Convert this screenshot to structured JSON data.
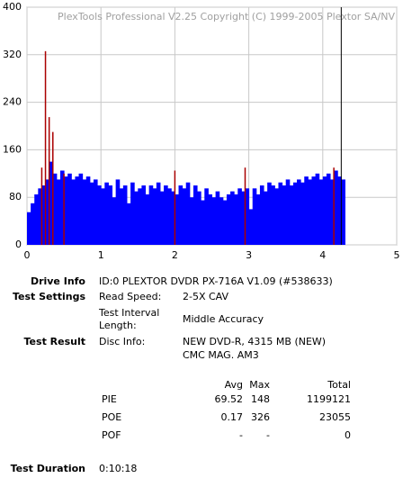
{
  "chart_data": {
    "type": "bar",
    "watermark": "PlexTools Professional V2.25 Copyright (C) 1999-2005 Plextor SA/NV",
    "x": [
      0,
      0.05,
      0.1,
      0.15,
      0.2,
      0.25,
      0.3,
      0.35,
      0.4,
      0.45,
      0.5,
      0.55,
      0.6,
      0.65,
      0.7,
      0.75,
      0.8,
      0.85,
      0.9,
      0.95,
      1,
      1.05,
      1.1,
      1.15,
      1.2,
      1.25,
      1.3,
      1.35,
      1.4,
      1.45,
      1.5,
      1.55,
      1.6,
      1.65,
      1.7,
      1.75,
      1.8,
      1.85,
      1.9,
      1.95,
      2,
      2.05,
      2.1,
      2.15,
      2.2,
      2.25,
      2.3,
      2.35,
      2.4,
      2.45,
      2.5,
      2.55,
      2.6,
      2.65,
      2.7,
      2.75,
      2.8,
      2.85,
      2.9,
      2.95,
      3,
      3.05,
      3.1,
      3.15,
      3.2,
      3.25,
      3.3,
      3.35,
      3.4,
      3.45,
      3.5,
      3.55,
      3.6,
      3.65,
      3.7,
      3.75,
      3.8,
      3.85,
      3.9,
      3.95,
      4,
      4.05,
      4.1,
      4.15,
      4.2,
      4.25
    ],
    "series": [
      {
        "color": "#0000ff",
        "values": [
          55,
          70,
          85,
          95,
          100,
          110,
          140,
          120,
          110,
          125,
          115,
          120,
          110,
          115,
          120,
          110,
          115,
          105,
          110,
          100,
          95,
          105,
          100,
          80,
          110,
          95,
          100,
          70,
          105,
          90,
          95,
          100,
          85,
          100,
          95,
          105,
          90,
          100,
          95,
          90,
          85,
          100,
          95,
          105,
          80,
          100,
          90,
          75,
          95,
          85,
          80,
          90,
          80,
          75,
          85,
          90,
          85,
          95,
          90,
          95,
          60,
          95,
          85,
          100,
          90,
          105,
          100,
          95,
          105,
          100,
          110,
          100,
          105,
          110,
          105,
          115,
          110,
          115,
          120,
          110,
          115,
          120,
          110,
          125,
          115,
          110
        ]
      },
      {
        "color": "#aa0000",
        "values": [
          0,
          0,
          0,
          0,
          130,
          326,
          215,
          190,
          0,
          0,
          120,
          0,
          0,
          0,
          0,
          0,
          0,
          0,
          0,
          0,
          0,
          0,
          0,
          0,
          0,
          0,
          0,
          0,
          0,
          0,
          0,
          0,
          0,
          0,
          0,
          0,
          0,
          0,
          0,
          0,
          125,
          0,
          0,
          0,
          0,
          0,
          0,
          0,
          0,
          0,
          0,
          0,
          0,
          0,
          0,
          0,
          0,
          0,
          0,
          130,
          0,
          0,
          0,
          0,
          0,
          0,
          0,
          0,
          0,
          0,
          0,
          0,
          0,
          0,
          0,
          0,
          0,
          0,
          0,
          0,
          0,
          0,
          0,
          130,
          0,
          0
        ]
      }
    ],
    "cursor_x": 4.25,
    "xlim": [
      0,
      5
    ],
    "xticks": [
      0,
      1,
      2,
      3,
      4,
      5
    ],
    "ylim": [
      0,
      400
    ],
    "yticks": [
      0,
      80,
      160,
      240,
      320,
      400
    ],
    "grid": true
  },
  "report": {
    "drive_info": {
      "label": "Drive Info",
      "value": "ID:0 PLEXTOR DVDR PX-716A V1.09 (#538633)"
    },
    "test_settings": {
      "label": "Test Settings",
      "items": [
        [
          "Read Speed:",
          "2-5X CAV"
        ],
        [
          "Test Interval Length:",
          "Middle Accuracy"
        ]
      ]
    },
    "test_result": {
      "label": "Test Result",
      "disc_label": "Disc Info:",
      "disc_lines": [
        "NEW DVD-R, 4315 MB (NEW)",
        "CMC MAG. AM3"
      ]
    },
    "stats": {
      "header": [
        "Avg",
        "Max",
        "Total"
      ],
      "rows": [
        [
          "PIE",
          69.52,
          148,
          1199121
        ],
        [
          "POE",
          0.17,
          326,
          23055
        ],
        [
          "POF",
          "-",
          "-",
          0
        ]
      ]
    },
    "test_duration": {
      "label": "Test Duration",
      "value": "0:10:18"
    }
  }
}
